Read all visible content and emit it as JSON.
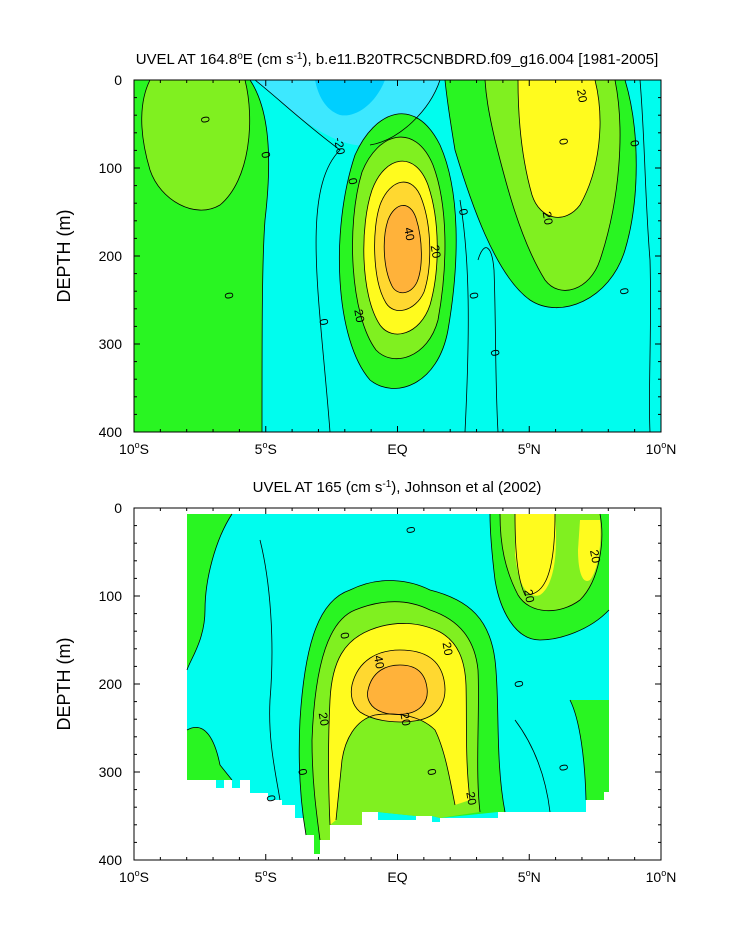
{
  "chart_data": [
    {
      "type": "contour",
      "title_parts": [
        "UVEL AT 164.8",
        "o",
        "E (cm s",
        "-1",
        "), b.e11.B20TRC5CNBDRD.f09_g16.004 [1981-2005]"
      ],
      "ylabel": "DEPTH (m)",
      "xlim": [
        -10,
        10
      ],
      "ylim": [
        400,
        0
      ],
      "y_reversed": true,
      "xticks": [
        -10,
        -5,
        0,
        5,
        10
      ],
      "xtick_labels": [
        [
          "10",
          "o",
          "S"
        ],
        [
          "5",
          "o",
          "S"
        ],
        [
          "EQ"
        ],
        [
          "5",
          "o",
          "N"
        ],
        [
          "10",
          "o",
          "N"
        ]
      ],
      "yticks": [
        0,
        100,
        200,
        300,
        400
      ],
      "ytick_labels": [
        "0",
        "100",
        "200",
        "300",
        "400"
      ],
      "contour_levels": [
        -30,
        -20,
        -10,
        0,
        10,
        20,
        30,
        40
      ],
      "fill_colors": [
        "#00cfff",
        "#3de8ff",
        "#00fdee",
        "#29f522",
        "#80f020",
        "#fffb1e",
        "#ffd830",
        "#ffb23a"
      ],
      "features": [
        {
          "name": "equatorial-undercurrent-core",
          "lat": 0,
          "depth": 195,
          "value": 45
        },
        {
          "name": "south-equatorial-current",
          "lat": -2,
          "depth": 10,
          "value": -28
        },
        {
          "name": "north-equatorial-countercurrent",
          "lat": 6,
          "depth": 75,
          "value": 28
        },
        {
          "name": "southern-westward-flow",
          "lat": -8,
          "depth": 60,
          "value": 8
        }
      ],
      "contour_labels": [
        {
          "lat": -7.3,
          "depth": 45,
          "text": "0"
        },
        {
          "lat": -5,
          "depth": 85,
          "text": "0"
        },
        {
          "lat": -6.4,
          "depth": 245,
          "text": "0"
        },
        {
          "lat": -2.8,
          "depth": 275,
          "text": "0"
        },
        {
          "lat": -1.7,
          "depth": 115,
          "text": "0"
        },
        {
          "lat": -2.2,
          "depth": 75,
          "text": "-20"
        },
        {
          "lat": 0.45,
          "depth": 175,
          "text": "40"
        },
        {
          "lat": 1.45,
          "depth": 195,
          "text": "20"
        },
        {
          "lat": -1.45,
          "depth": 268,
          "text": "20"
        },
        {
          "lat": 2.5,
          "depth": 150,
          "text": "0"
        },
        {
          "lat": 2.9,
          "depth": 245,
          "text": "0"
        },
        {
          "lat": 3.7,
          "depth": 310,
          "text": "0"
        },
        {
          "lat": 5.7,
          "depth": 157,
          "text": "20"
        },
        {
          "lat": 7,
          "depth": 18,
          "text": "20"
        },
        {
          "lat": 6.3,
          "depth": 70,
          "text": "0"
        },
        {
          "lat": 9,
          "depth": 72,
          "text": "0"
        },
        {
          "lat": 8.6,
          "depth": 240,
          "text": "0"
        }
      ]
    },
    {
      "type": "contour",
      "title_parts": [
        "UVEL AT 165 (cm s",
        "-1",
        "), Johnson et al (2002)"
      ],
      "ylabel": "DEPTH (m)",
      "xlim": [
        -10,
        10
      ],
      "ylim": [
        400,
        0
      ],
      "y_reversed": true,
      "data_lat_range": [
        -8,
        8
      ],
      "xticks": [
        -10,
        -5,
        0,
        5,
        10
      ],
      "xtick_labels": [
        [
          "10",
          "o",
          "S"
        ],
        [
          "5",
          "o",
          "S"
        ],
        [
          "EQ"
        ],
        [
          "5",
          "o",
          "N"
        ],
        [
          "10",
          "o",
          "N"
        ]
      ],
      "yticks": [
        0,
        100,
        200,
        300,
        400
      ],
      "ytick_labels": [
        "0",
        "100",
        "200",
        "300",
        "400"
      ],
      "contour_levels": [
        -30,
        -20,
        -10,
        0,
        10,
        20,
        30,
        40
      ],
      "fill_colors": [
        "#00cfff",
        "#3de8ff",
        "#00fdee",
        "#29f522",
        "#80f020",
        "#fffb1e",
        "#ffd830",
        "#ffb23a"
      ],
      "features": [
        {
          "name": "equatorial-undercurrent-core",
          "lat": 0,
          "depth": 190,
          "value": 42
        },
        {
          "name": "north-equatorial-countercurrent",
          "lat": 5.8,
          "depth": 60,
          "value": 24
        },
        {
          "name": "westward-flow",
          "lat": -5,
          "depth": 120,
          "value": -15
        }
      ],
      "contour_labels": [
        {
          "lat": -4.8,
          "depth": 330,
          "text": "0"
        },
        {
          "lat": -2,
          "depth": 145,
          "text": "0"
        },
        {
          "lat": -3.6,
          "depth": 300,
          "text": "0"
        },
        {
          "lat": -2.8,
          "depth": 240,
          "text": "20"
        },
        {
          "lat": -0.7,
          "depth": 175,
          "text": "40"
        },
        {
          "lat": 1.9,
          "depth": 160,
          "text": "20"
        },
        {
          "lat": 0.3,
          "depth": 240,
          "text": "20"
        },
        {
          "lat": 1.3,
          "depth": 300,
          "text": "0"
        },
        {
          "lat": 2.8,
          "depth": 330,
          "text": "20"
        },
        {
          "lat": 0.5,
          "depth": 25,
          "text": "0"
        },
        {
          "lat": 5,
          "depth": 100,
          "text": "20"
        },
        {
          "lat": 7.5,
          "depth": 55,
          "text": "20"
        },
        {
          "lat": 4.6,
          "depth": 200,
          "text": "0"
        },
        {
          "lat": 6.3,
          "depth": 295,
          "text": "0"
        }
      ]
    }
  ]
}
